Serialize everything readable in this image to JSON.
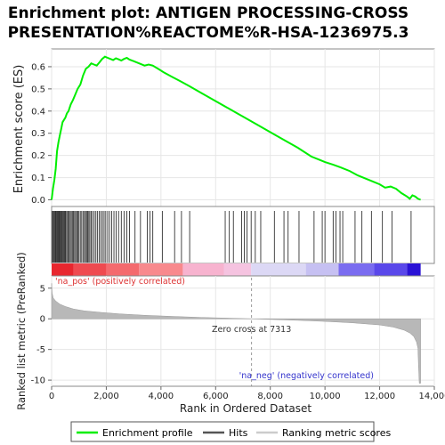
{
  "chart_data": {
    "type": "line",
    "title": [
      "Enrichment plot: ANTIGEN PROCESSING-CROSS",
      "PRESENTATION%REACTOME%R-HSA-1236975.3"
    ],
    "top_panel": {
      "ylabel": "Enrichment score (ES)",
      "ylim": [
        -0.03,
        0.68
      ],
      "yticks": [
        0.0,
        0.1,
        0.2,
        0.3,
        0.4,
        0.5,
        0.6
      ],
      "ytick_labels": [
        "0.0",
        "0.1",
        "0.2",
        "0.3",
        "0.4",
        "0.5",
        "0.6"
      ],
      "series": [
        {
          "name": "Enrichment profile",
          "color": "#00ee00",
          "x": [
            0,
            50,
            100,
            150,
            200,
            250,
            300,
            350,
            400,
            450,
            500,
            560,
            620,
            700,
            780,
            850,
            950,
            1050,
            1150,
            1250,
            1350,
            1450,
            1550,
            1650,
            1750,
            1850,
            1950,
            2050,
            2150,
            2250,
            2350,
            2450,
            2550,
            2650,
            2750,
            2850,
            3000,
            3200,
            3400,
            3550,
            3700,
            3900,
            4100,
            4400,
            4700,
            5000,
            5500,
            6000,
            6500,
            7000,
            7500,
            8000,
            8500,
            9000,
            9500,
            9800,
            10000,
            10300,
            10600,
            10900,
            11200,
            11500,
            11800,
            12000,
            12200,
            12400,
            12600,
            12800,
            13000,
            13100,
            13200,
            13300,
            13400,
            13500
          ],
          "y": [
            0.0,
            0.05,
            0.09,
            0.14,
            0.22,
            0.26,
            0.29,
            0.32,
            0.35,
            0.36,
            0.37,
            0.39,
            0.4,
            0.43,
            0.45,
            0.47,
            0.5,
            0.52,
            0.56,
            0.59,
            0.6,
            0.615,
            0.61,
            0.605,
            0.62,
            0.635,
            0.645,
            0.64,
            0.635,
            0.63,
            0.638,
            0.633,
            0.628,
            0.635,
            0.64,
            0.632,
            0.625,
            0.615,
            0.605,
            0.61,
            0.605,
            0.59,
            0.575,
            0.555,
            0.535,
            0.515,
            0.48,
            0.445,
            0.41,
            0.375,
            0.34,
            0.305,
            0.27,
            0.235,
            0.195,
            0.18,
            0.17,
            0.158,
            0.145,
            0.13,
            0.11,
            0.095,
            0.08,
            0.07,
            0.055,
            0.06,
            0.05,
            0.03,
            0.015,
            0.005,
            0.02,
            0.015,
            0.005,
            0.0
          ]
        }
      ]
    },
    "hits": [
      25,
      55,
      85,
      110,
      140,
      160,
      190,
      215,
      240,
      265,
      290,
      320,
      345,
      375,
      400,
      430,
      460,
      490,
      520,
      560,
      600,
      640,
      680,
      720,
      760,
      800,
      840,
      880,
      920,
      960,
      1000,
      1050,
      1100,
      1150,
      1200,
      1240,
      1280,
      1320,
      1360,
      1400,
      1450,
      1500,
      1560,
      1620,
      1680,
      1740,
      1800,
      1860,
      1920,
      1980,
      2050,
      2120,
      2200,
      2280,
      2360,
      2450,
      2550,
      2650,
      2750,
      2850,
      3050,
      3250,
      3500,
      3600,
      3700,
      4050,
      4500,
      4750,
      5050,
      6350,
      6500,
      6650,
      6950,
      7050,
      7150,
      7300,
      7450,
      7650,
      8150,
      8500,
      8650,
      9050,
      9600,
      9900,
      10000,
      10300,
      10400,
      10550,
      10650,
      11100,
      11350,
      11700,
      12100,
      12450,
      13150
    ],
    "ranked_metric": {
      "ylabel": "Ranked list metric (PreRanked)",
      "ylim": [
        -11,
        7
      ],
      "yticks": [
        5,
        0,
        -5,
        -10
      ],
      "ytick_labels": [
        "5",
        "0",
        "-5",
        "-10"
      ],
      "x": [
        0,
        20,
        60,
        150,
        300,
        500,
        800,
        1200,
        1800,
        2500,
        3500,
        4500,
        5500,
        6500,
        7313,
        8000,
        9000,
        10000,
        11000,
        12000,
        12500,
        12900,
        13100,
        13250,
        13350,
        13400,
        13420,
        13450,
        13500
      ],
      "y": [
        5.8,
        4.2,
        3.4,
        2.9,
        2.4,
        2.0,
        1.6,
        1.3,
        1.05,
        0.8,
        0.55,
        0.38,
        0.22,
        0.1,
        0.0,
        -0.1,
        -0.25,
        -0.42,
        -0.65,
        -1.0,
        -1.35,
        -1.85,
        -2.3,
        -2.9,
        -3.8,
        -4.8,
        -7.5,
        -10.5,
        -10.5
      ],
      "zero_cross_label": "Zero cross at 7313",
      "zero_cross": 7313,
      "pos_label": "'na_pos' (positively correlated)",
      "neg_label": "'na_neg' (negatively correlated)"
    },
    "xlabel": "Rank in Ordered Dataset",
    "xlim": [
      0,
      14000
    ],
    "xticks": [
      0,
      2000,
      4000,
      6000,
      8000,
      10000,
      12000,
      14000
    ],
    "xtick_labels": [
      "0",
      "2,000",
      "4,000",
      "6,000",
      "8,000",
      "10,000",
      "12,000",
      "14,000"
    ],
    "legend": {
      "placement": "bottom",
      "entries": [
        {
          "label": "Enrichment profile",
          "color": "#00ee00"
        },
        {
          "label": "Hits",
          "color": "#555555"
        },
        {
          "label": "Ranking metric scores",
          "color": "#cccccc"
        }
      ]
    },
    "gradient_bands": [
      {
        "from": 0,
        "to": 800,
        "color": "#e8262e"
      },
      {
        "from": 800,
        "to": 2000,
        "color": "#ef4a50"
      },
      {
        "from": 2000,
        "to": 3200,
        "color": "#f46a6e"
      },
      {
        "from": 3200,
        "to": 4800,
        "color": "#f8898d"
      },
      {
        "from": 4800,
        "to": 6300,
        "color": "#f7b3cf"
      },
      {
        "from": 6300,
        "to": 7300,
        "color": "#f5c3e0"
      },
      {
        "from": 7300,
        "to": 9300,
        "color": "#dcd8f5"
      },
      {
        "from": 9300,
        "to": 10500,
        "color": "#c6c0f2"
      },
      {
        "from": 10500,
        "to": 11800,
        "color": "#7a6cf0"
      },
      {
        "from": 11800,
        "to": 13000,
        "color": "#5a48ea"
      },
      {
        "from": 13000,
        "to": 13500,
        "color": "#2a12d6"
      }
    ]
  }
}
